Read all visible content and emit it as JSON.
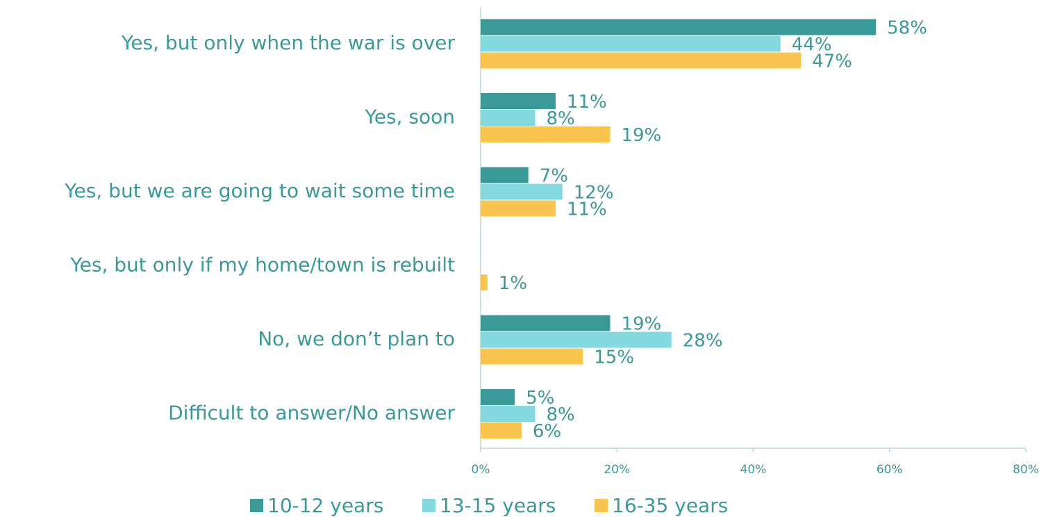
{
  "chart_data": {
    "type": "bar",
    "orientation": "horizontal",
    "categories": [
      "Yes, but only when the war is over",
      "Yes, soon",
      "Yes, but we are going to wait some time",
      "Yes, but only if my home/town is rebuilt",
      "No, we don’t plan to",
      "Difficult to answer/No answer"
    ],
    "series": [
      {
        "name": "10-12 years",
        "color": "#3a9a98",
        "values": [
          58,
          11,
          7,
          null,
          19,
          5
        ],
        "value_labels": [
          "58%",
          "11%",
          "7%",
          null,
          "19%",
          "5%"
        ]
      },
      {
        "name": "13-15 years",
        "color": "#84d8e0",
        "values": [
          44,
          8,
          12,
          null,
          28,
          8
        ],
        "value_labels": [
          "44%",
          "8%",
          "12%",
          null,
          "28%",
          "8%"
        ]
      },
      {
        "name": "16-35 years",
        "color": "#f9c54e",
        "values": [
          47,
          19,
          11,
          1,
          15,
          6
        ],
        "value_labels": [
          "47%",
          "19%",
          "11%",
          "1%",
          "15%",
          "6%"
        ]
      }
    ],
    "xlim": [
      0,
      80
    ],
    "xticks": [
      {
        "value": 0,
        "label": "0%"
      },
      {
        "value": 20,
        "label": "20%"
      },
      {
        "value": 40,
        "label": "40%"
      },
      {
        "value": 60,
        "label": "60%"
      },
      {
        "value": 80,
        "label": "80%"
      }
    ],
    "legend": "bottom"
  }
}
